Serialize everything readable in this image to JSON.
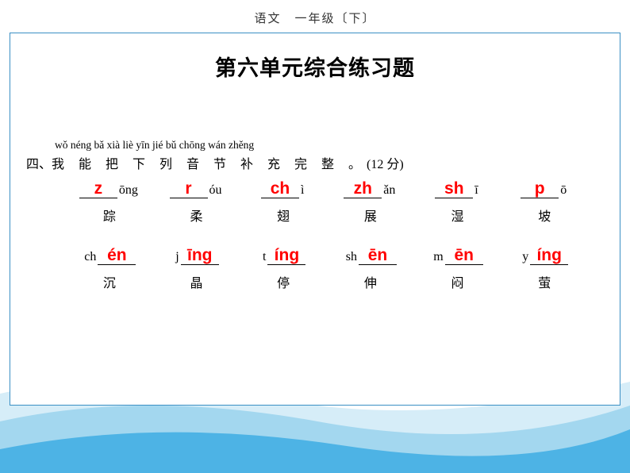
{
  "header": "语文　一年级〔下〕",
  "title": "第六单元综合练习题",
  "question": {
    "pinyin": "wǒ  néng  bǎ  xià  liè  yīn  jié  bǔ  chōng  wán  zhěng",
    "number": "四、",
    "text": "我 能 把 下 列 音 节 补 充 完 整 。",
    "points": "(12 分)"
  },
  "row1": [
    {
      "answer": "z",
      "given": "ōng",
      "char": "踪",
      "answerFirst": true
    },
    {
      "answer": "r",
      "given": "óu",
      "char": "柔",
      "answerFirst": true
    },
    {
      "answer": "ch",
      "given": "ì",
      "char": "翅",
      "answerFirst": true
    },
    {
      "answer": "zh",
      "given": "ǎn",
      "char": "展",
      "answerFirst": true
    },
    {
      "answer": "sh",
      "given": "ī",
      "char": "湿",
      "answerFirst": true
    },
    {
      "answer": "p",
      "given": "ō",
      "char": "坡",
      "answerFirst": true
    }
  ],
  "row2": [
    {
      "given": "ch",
      "answer": "én",
      "char": "沉",
      "answerFirst": false
    },
    {
      "given": "j",
      "answer": "īng",
      "char": "晶",
      "answerFirst": false
    },
    {
      "given": "t",
      "answer": "íng",
      "char": "停",
      "answerFirst": false
    },
    {
      "given": "sh",
      "answer": "ēn",
      "char": "伸",
      "answerFirst": false
    },
    {
      "given": "m",
      "answer": "ēn",
      "char": "闷",
      "answerFirst": false
    },
    {
      "given": "y",
      "answer": "íng",
      "char": "萤",
      "answerFirst": false
    }
  ],
  "colors": {
    "answer": "#ff0000",
    "border": "#3a8fc4",
    "wave_light": "#d6edf8",
    "wave_mid": "#a3d7ef",
    "wave_dark": "#4db3e5"
  }
}
